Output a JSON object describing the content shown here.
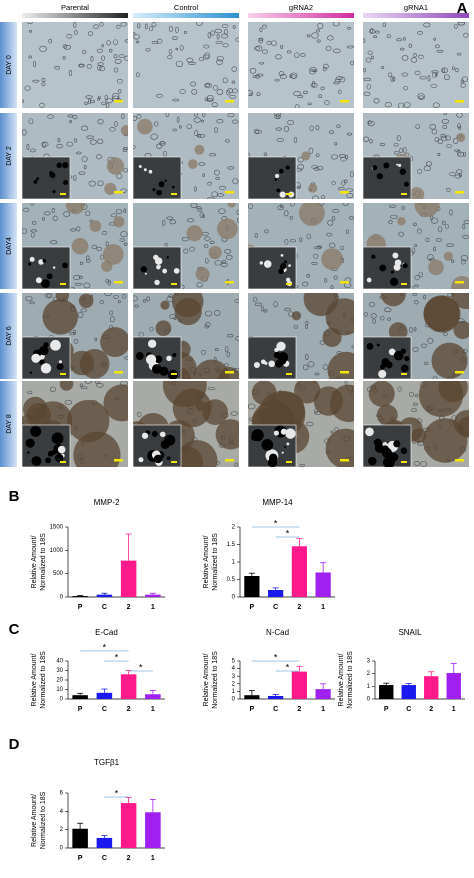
{
  "panel_a": {
    "label": "A",
    "columns": [
      "Parental",
      "Control",
      "gRNA2",
      "gRNA1"
    ],
    "rows": [
      "DAY 0",
      "DAY 2",
      "DAY4",
      "DAY 6",
      "DAY 8"
    ]
  },
  "panel_labels": [
    "B",
    "C",
    "D"
  ],
  "chart_data": [
    {
      "type": "bar",
      "title": "MMP-2",
      "ylabel": [
        "Relative Amount/",
        "Normalized to 18S"
      ],
      "categories": [
        "P",
        "C",
        "2",
        "1"
      ],
      "values": [
        20,
        50,
        780,
        50
      ],
      "errors": [
        10,
        30,
        570,
        30
      ],
      "colors": [
        "#000000",
        "#1a1aee",
        "#ff1a8c",
        "#a020f0"
      ],
      "ylim": [
        0,
        1500
      ],
      "yticks": [
        0,
        500,
        1000,
        1500
      ],
      "significance": []
    },
    {
      "type": "bar",
      "title": "MMP-14",
      "ylabel": [
        "Relative Amount/",
        "Normalized to 18S"
      ],
      "categories": [
        "P",
        "C",
        "2",
        "1"
      ],
      "values": [
        0.6,
        0.2,
        1.45,
        0.7
      ],
      "errors": [
        0.08,
        0.06,
        0.22,
        0.28
      ],
      "colors": [
        "#000000",
        "#1a1aee",
        "#ff1a8c",
        "#a020f0"
      ],
      "ylim": [
        0,
        2
      ],
      "yticks": [
        0,
        0.5,
        1,
        1.5,
        2
      ],
      "significance": [
        {
          "pair": [
            0,
            2
          ],
          "label": "*"
        },
        {
          "pair": [
            1,
            2
          ],
          "label": "*"
        }
      ]
    },
    {
      "type": "bar",
      "title": "E-Cad",
      "ylabel": [
        "Relative Amount/",
        "Normalized to 18S"
      ],
      "categories": [
        "P",
        "C",
        "2",
        "1"
      ],
      "values": [
        4,
        6.5,
        26,
        5
      ],
      "errors": [
        2,
        4,
        4,
        4
      ],
      "colors": [
        "#000000",
        "#1a1aee",
        "#ff1a8c",
        "#a020f0"
      ],
      "ylim": [
        0,
        40
      ],
      "yticks": [
        0,
        10,
        20,
        30,
        40
      ],
      "significance": [
        {
          "pair": [
            0,
            2
          ],
          "label": "*"
        },
        {
          "pair": [
            1,
            2
          ],
          "label": "*"
        },
        {
          "pair": [
            2,
            3
          ],
          "label": "*"
        }
      ]
    },
    {
      "type": "bar",
      "title": "N-Cad",
      "ylabel": [
        "Relative Amount/",
        "Normalized to 18S"
      ],
      "categories": [
        "P",
        "C",
        "2",
        "1"
      ],
      "values": [
        0.5,
        0.4,
        3.6,
        1.3
      ],
      "errors": [
        0.6,
        0.2,
        0.7,
        0.7
      ],
      "colors": [
        "#000000",
        "#1a1aee",
        "#ff1a8c",
        "#a020f0"
      ],
      "ylim": [
        0,
        5
      ],
      "yticks": [
        0,
        1,
        2,
        3,
        4,
        5
      ],
      "significance": [
        {
          "pair": [
            0,
            2
          ],
          "label": "*"
        },
        {
          "pair": [
            1,
            2
          ],
          "label": "*"
        }
      ]
    },
    {
      "type": "bar",
      "title": "SNAIL",
      "ylabel": [
        "Relative Amount/",
        "Normalized to 18S"
      ],
      "categories": [
        "P",
        "C",
        "2",
        "1"
      ],
      "values": [
        1.1,
        1.1,
        1.8,
        2.05
      ],
      "errors": [
        0.15,
        0.12,
        0.35,
        0.75
      ],
      "colors": [
        "#000000",
        "#1a1aee",
        "#ff1a8c",
        "#a020f0"
      ],
      "ylim": [
        0,
        3
      ],
      "yticks": [
        0,
        1,
        2,
        3
      ],
      "significance": []
    },
    {
      "type": "bar",
      "title": "TGFβ1",
      "ylabel": [
        "Relative Amount/",
        "Normalized to 18S"
      ],
      "categories": [
        "P",
        "C",
        "2",
        "1"
      ],
      "values": [
        2.1,
        1.1,
        4.9,
        3.9
      ],
      "errors": [
        0.6,
        0.25,
        0.6,
        1.4
      ],
      "colors": [
        "#000000",
        "#1a1aee",
        "#ff1a8c",
        "#a020f0"
      ],
      "ylim": [
        0,
        6
      ],
      "yticks": [
        0,
        2,
        4,
        6
      ],
      "significance": [
        {
          "pair": [
            1,
            2
          ],
          "label": "*"
        }
      ]
    }
  ]
}
